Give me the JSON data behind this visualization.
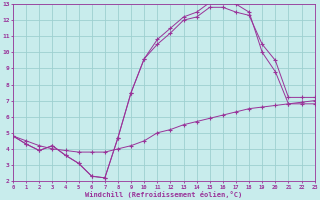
{
  "xlabel": "Windchill (Refroidissement éolien,°C)",
  "xlim": [
    0,
    23
  ],
  "ylim": [
    2,
    13
  ],
  "yticks": [
    2,
    3,
    4,
    5,
    6,
    7,
    8,
    9,
    10,
    11,
    12,
    13
  ],
  "xticks": [
    0,
    1,
    2,
    3,
    4,
    5,
    6,
    7,
    8,
    9,
    10,
    11,
    12,
    13,
    14,
    15,
    16,
    17,
    18,
    19,
    20,
    21,
    22,
    23
  ],
  "line_color": "#993399",
  "bg_color": "#c8ecec",
  "grid_color": "#9ed0d0",
  "line1_x": [
    0,
    1,
    2,
    3,
    4,
    5,
    6,
    7,
    8,
    9,
    10,
    11,
    12,
    13,
    14,
    15,
    16,
    17,
    18,
    19,
    20,
    21,
    22,
    23
  ],
  "line1_y": [
    4.8,
    4.3,
    3.9,
    4.2,
    3.6,
    3.1,
    2.3,
    2.2,
    4.7,
    7.5,
    9.6,
    10.8,
    11.5,
    12.2,
    12.5,
    13.1,
    13.3,
    13.0,
    12.5,
    10.0,
    8.8,
    6.8,
    6.8,
    6.8
  ],
  "line2_x": [
    0,
    1,
    2,
    3,
    4,
    5,
    6,
    7,
    8,
    9,
    10,
    11,
    12,
    13,
    14,
    15,
    16,
    17,
    18,
    19,
    20,
    21,
    22,
    23
  ],
  "line2_y": [
    4.8,
    4.3,
    3.9,
    4.2,
    3.6,
    3.1,
    2.3,
    2.2,
    4.7,
    7.5,
    9.6,
    10.5,
    11.2,
    12.0,
    12.2,
    12.8,
    12.8,
    12.5,
    12.3,
    10.5,
    9.5,
    7.2,
    7.2,
    7.2
  ],
  "line3_x": [
    0,
    1,
    2,
    3,
    4,
    5,
    6,
    7,
    8,
    9,
    10,
    11,
    12,
    13,
    14,
    15,
    16,
    17,
    18,
    19,
    20,
    21,
    22,
    23
  ],
  "line3_y": [
    4.8,
    4.5,
    4.2,
    4.0,
    3.9,
    3.8,
    3.8,
    3.8,
    4.0,
    4.2,
    4.5,
    5.0,
    5.2,
    5.5,
    5.7,
    5.9,
    6.1,
    6.3,
    6.5,
    6.6,
    6.7,
    6.8,
    6.9,
    7.0
  ],
  "font_color": "#993399",
  "axis_color": "#993399"
}
